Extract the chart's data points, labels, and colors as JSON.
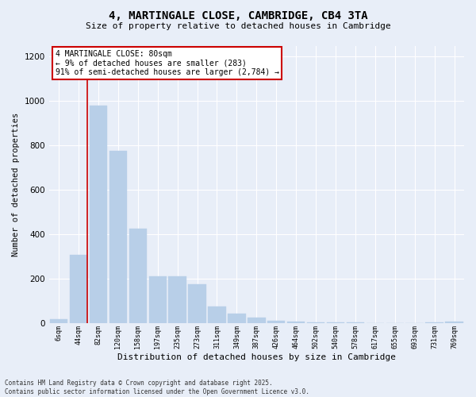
{
  "title": "4, MARTINGALE CLOSE, CAMBRIDGE, CB4 3TA",
  "subtitle": "Size of property relative to detached houses in Cambridge",
  "xlabel": "Distribution of detached houses by size in Cambridge",
  "ylabel": "Number of detached properties",
  "annotation_title": "4 MARTINGALE CLOSE: 80sqm",
  "annotation_line1": "← 9% of detached houses are smaller (283)",
  "annotation_line2": "91% of semi-detached houses are larger (2,784) →",
  "footer_line1": "Contains HM Land Registry data © Crown copyright and database right 2025.",
  "footer_line2": "Contains public sector information licensed under the Open Government Licence v3.0.",
  "categories": [
    "6sqm",
    "44sqm",
    "82sqm",
    "120sqm",
    "158sqm",
    "197sqm",
    "235sqm",
    "273sqm",
    "311sqm",
    "349sqm",
    "387sqm",
    "426sqm",
    "464sqm",
    "502sqm",
    "540sqm",
    "578sqm",
    "617sqm",
    "655sqm",
    "693sqm",
    "731sqm",
    "769sqm"
  ],
  "values": [
    15,
    305,
    980,
    775,
    425,
    210,
    210,
    175,
    75,
    40,
    25,
    10,
    5,
    3,
    2,
    2,
    0,
    0,
    0,
    2,
    5
  ],
  "bar_color": "#b8cfe8",
  "bar_edge_color": "#b8cfe8",
  "vline_color": "#cc0000",
  "background_color": "#e8eef8",
  "grid_color": "#ffffff",
  "ylim": [
    0,
    1250
  ],
  "yticks": [
    0,
    200,
    400,
    600,
    800,
    1000,
    1200
  ],
  "vline_pos": 1.42
}
